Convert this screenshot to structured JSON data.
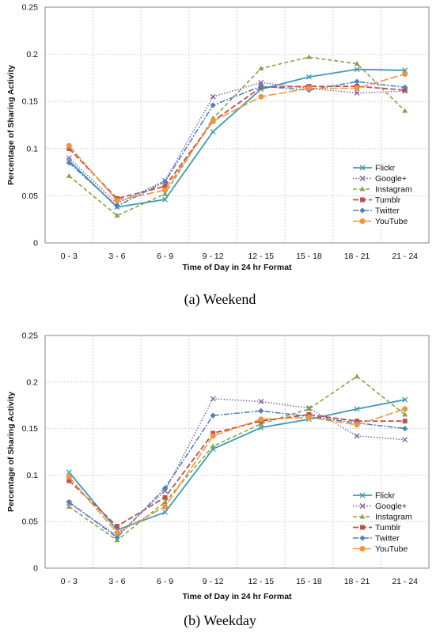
{
  "colors": {
    "Flickr": "#3a9cb4",
    "Google+": "#7a5fa0",
    "Instagram": "#8aa447",
    "Tumblr": "#c0504d",
    "Twitter": "#4f81bd",
    "YouTube": "#f0953d"
  },
  "chart_data": [
    {
      "type": "line",
      "caption": "(a)  Weekend",
      "xlabel": "Time of Day in 24 hr Format",
      "ylabel": "Percentage of Sharing Activity",
      "ylim": [
        0,
        0.25
      ],
      "yticks": [
        0,
        0.05,
        0.1,
        0.15,
        0.2,
        0.25
      ],
      "ytick_labels": [
        "0",
        "0.05",
        "0.1",
        "0.15",
        "0.2",
        "0.25"
      ],
      "grid": true,
      "legend_position": "right",
      "categories": [
        "0 - 3",
        "3 - 6",
        "6 - 9",
        "9 - 12",
        "12 - 15",
        "15 - 18",
        "18 - 21",
        "21 - 24"
      ],
      "series": [
        {
          "name": "Flickr",
          "values": [
            0.087,
            0.038,
            0.046,
            0.118,
            0.163,
            0.176,
            0.184,
            0.183
          ]
        },
        {
          "name": "Google+",
          "values": [
            0.09,
            0.042,
            0.066,
            0.155,
            0.17,
            0.164,
            0.159,
            0.161
          ]
        },
        {
          "name": "Instagram",
          "values": [
            0.071,
            0.029,
            0.052,
            0.132,
            0.185,
            0.197,
            0.19,
            0.14
          ]
        },
        {
          "name": "Tumblr",
          "values": [
            0.1,
            0.047,
            0.06,
            0.129,
            0.165,
            0.166,
            0.166,
            0.162
          ]
        },
        {
          "name": "Twitter",
          "values": [
            0.085,
            0.039,
            0.065,
            0.146,
            0.166,
            0.162,
            0.171,
            0.165
          ]
        },
        {
          "name": "YouTube",
          "values": [
            0.103,
            0.045,
            0.056,
            0.129,
            0.155,
            0.164,
            0.164,
            0.179
          ]
        }
      ]
    },
    {
      "type": "line",
      "caption": "(b)  Weekday",
      "xlabel": "Time of Day in 24 hr Format",
      "ylabel": "Percentage of Sharing Activity",
      "ylim": [
        0,
        0.25
      ],
      "yticks": [
        0,
        0.05,
        0.1,
        0.15,
        0.2,
        0.25
      ],
      "ytick_labels": [
        "0",
        "0.05",
        "0.1",
        "0.15",
        "0.2",
        "0.25"
      ],
      "grid": true,
      "legend_position": "right",
      "categories": [
        "0 - 3",
        "3 - 6",
        "6 - 9",
        "9 - 12",
        "12 - 15",
        "15 - 18",
        "18 - 21",
        "21 - 24"
      ],
      "series": [
        {
          "name": "Flickr",
          "values": [
            0.103,
            0.041,
            0.06,
            0.128,
            0.151,
            0.16,
            0.171,
            0.181
          ]
        },
        {
          "name": "Google+",
          "values": [
            0.07,
            0.035,
            0.083,
            0.182,
            0.179,
            0.172,
            0.142,
            0.138
          ]
        },
        {
          "name": "Instagram",
          "values": [
            0.066,
            0.03,
            0.071,
            0.131,
            0.155,
            0.171,
            0.206,
            0.165
          ]
        },
        {
          "name": "Tumblr",
          "values": [
            0.094,
            0.045,
            0.076,
            0.145,
            0.158,
            0.165,
            0.158,
            0.158
          ]
        },
        {
          "name": "Twitter",
          "values": [
            0.071,
            0.033,
            0.086,
            0.164,
            0.169,
            0.163,
            0.156,
            0.15
          ]
        },
        {
          "name": "YouTube",
          "values": [
            0.098,
            0.038,
            0.066,
            0.142,
            0.16,
            0.162,
            0.154,
            0.171
          ]
        }
      ]
    }
  ]
}
